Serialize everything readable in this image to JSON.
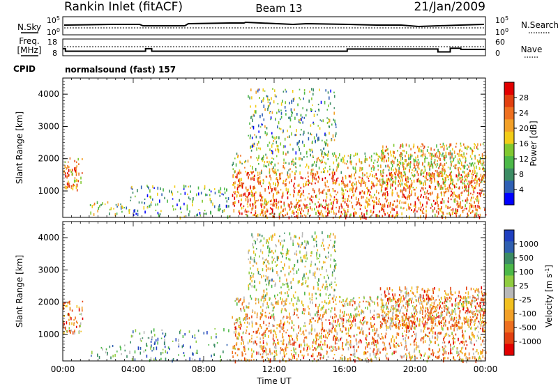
{
  "header": {
    "title": "Rankin Inlet (fitACF)",
    "beam": "Beam 13",
    "date": "21/Jan/2009"
  },
  "status_panels": {
    "nsky": {
      "label": "N.Sky",
      "left_ticks": [
        "10^5",
        "10^0"
      ],
      "right_ticks": [
        "10^5",
        "10^0"
      ],
      "right_label": "N.Search"
    },
    "freq": {
      "label_line1": "Freq.",
      "label_line2": "[MHz]",
      "left_ticks": [
        "18",
        "8"
      ],
      "right_ticks": [
        "60",
        "0"
      ],
      "right_label": "Nave",
      "freq_steps": [
        {
          "t": 0.0,
          "mhz": 12.2
        },
        {
          "t": 0.15,
          "mhz": 10.7
        },
        {
          "t": 4.7,
          "mhz": 12.2
        },
        {
          "t": 5.05,
          "mhz": 10.7
        },
        {
          "t": 16.15,
          "mhz": 12.0
        },
        {
          "t": 21.3,
          "mhz": 10.3
        },
        {
          "t": 22.0,
          "mhz": 12.5
        },
        {
          "t": 22.6,
          "mhz": 11.8
        },
        {
          "t": 24.0,
          "mhz": 11.8
        }
      ]
    },
    "cpid": {
      "label": "CPID",
      "value": "normalsound (fast) 157"
    }
  },
  "chart_data": [
    {
      "type": "heatmap",
      "name": "power",
      "ylabel": "Slant Range [km]",
      "yticks": [
        "1000",
        "2000",
        "3000",
        "4000"
      ],
      "ylim": [
        180,
        4500
      ],
      "xlim": [
        0,
        24
      ],
      "colorbar_label": "Power [dB]",
      "colorbar_ticks": [
        "4",
        "8",
        "12",
        "16",
        "20",
        "24",
        "28"
      ],
      "colorbar_colors": [
        "#0000ff",
        "#2f60b4",
        "#3c8c64",
        "#4cb848",
        "#80c830",
        "#f2cc18",
        "#f2a028",
        "#ee7020",
        "#e24010",
        "#e20000"
      ],
      "regions": [
        {
          "t0": 0.0,
          "t1": 1.1,
          "r0": 1050,
          "r1": 2050,
          "level": 0.7
        },
        {
          "t0": 1.5,
          "t1": 3.8,
          "r0": 300,
          "r1": 700,
          "level": 0.45
        },
        {
          "t0": 3.8,
          "t1": 9.5,
          "r0": 200,
          "r1": 1200,
          "level": 0.3
        },
        {
          "t0": 9.6,
          "t1": 24.0,
          "r0": 200,
          "r1": 1600,
          "level": 0.75
        },
        {
          "t0": 9.6,
          "t1": 24.0,
          "r0": 1600,
          "r1": 2200,
          "level": 0.5
        },
        {
          "t0": 10.5,
          "t1": 15.5,
          "r0": 2200,
          "r1": 4200,
          "level": 0.35
        },
        {
          "t0": 18.0,
          "t1": 24.0,
          "r0": 1200,
          "r1": 2500,
          "level": 0.6
        }
      ]
    },
    {
      "type": "heatmap",
      "name": "velocity",
      "ylabel": "Slant Range [km]",
      "yticks": [
        "1000",
        "2000",
        "3000",
        "4000"
      ],
      "ylim": [
        180,
        4500
      ],
      "xlim": [
        0,
        24
      ],
      "xticks": [
        "00:00",
        "04:00",
        "08:00",
        "12:00",
        "16:00",
        "20:00",
        "00:00"
      ],
      "xlabel": "Time UT",
      "colorbar_label": "Velocity [m s^-1]",
      "colorbar_ticks": [
        "1000",
        "500",
        "100",
        "25",
        "-25",
        "-100",
        "-500",
        "-1000"
      ],
      "colorbar_colors": [
        "#2040c0",
        "#3060b0",
        "#3c8c64",
        "#4cb848",
        "#90cc40",
        "#b8b8b8",
        "#f2c020",
        "#f2a028",
        "#ee7020",
        "#e24010",
        "#e20000"
      ],
      "regions": [
        {
          "t0": 0.0,
          "t1": 1.1,
          "r0": 1050,
          "r1": 2050,
          "level": 0.7
        },
        {
          "t0": 1.5,
          "t1": 3.8,
          "r0": 300,
          "r1": 700,
          "level": 0.3
        },
        {
          "t0": 3.8,
          "t1": 9.5,
          "r0": 200,
          "r1": 1200,
          "level": 0.25
        },
        {
          "t0": 9.6,
          "t1": 24.0,
          "r0": 200,
          "r1": 1600,
          "level": 0.68
        },
        {
          "t0": 9.6,
          "t1": 24.0,
          "r0": 1600,
          "r1": 2200,
          "level": 0.6
        },
        {
          "t0": 10.5,
          "t1": 15.5,
          "r0": 2200,
          "r1": 4200,
          "level": 0.45
        },
        {
          "t0": 18.0,
          "t1": 24.0,
          "r0": 1200,
          "r1": 2500,
          "level": 0.72
        }
      ]
    }
  ]
}
